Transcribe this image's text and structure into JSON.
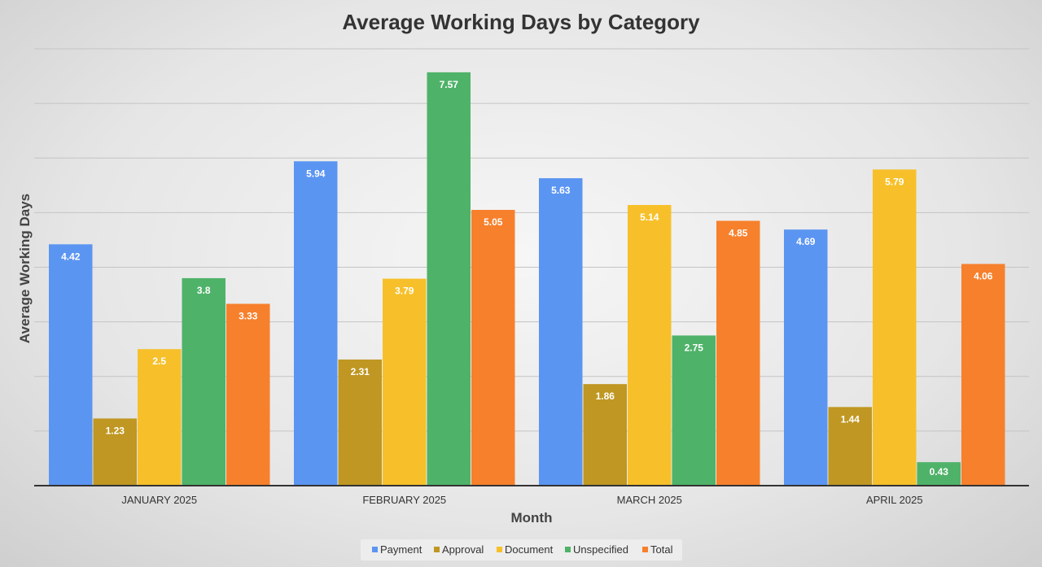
{
  "chart_data": {
    "type": "bar",
    "title": "Average Working Days by Category",
    "xlabel": "Month",
    "ylabel": "Average Working Days",
    "categories": [
      "JANUARY 2025",
      "FEBRUARY 2025",
      "MARCH 2025",
      "APRIL 2025"
    ],
    "series": [
      {
        "name": "Payment",
        "color": "#5b95f2",
        "values": [
          4.42,
          5.94,
          5.63,
          4.69
        ]
      },
      {
        "name": "Approval",
        "color": "#bf9722",
        "values": [
          1.23,
          2.31,
          1.86,
          1.44
        ]
      },
      {
        "name": "Document",
        "color": "#f7c02a",
        "values": [
          2.5,
          3.79,
          5.14,
          5.79
        ]
      },
      {
        "name": "Unspecified",
        "color": "#4fb269",
        "values": [
          3.8,
          7.57,
          2.75,
          0.43
        ]
      },
      {
        "name": "Total",
        "color": "#f7802c",
        "values": [
          3.33,
          5.05,
          4.85,
          4.06
        ]
      }
    ],
    "data_labels": [
      [
        "4.42",
        "1.23",
        "2.5",
        "3.8",
        "3.33"
      ],
      [
        "5.94",
        "2.31",
        "3.79",
        "7.57",
        "5.05"
      ],
      [
        "5.63",
        "1.86",
        "5.14",
        "2.75",
        "4.85"
      ],
      [
        "4.69",
        "1.44",
        "5.79",
        "0.43",
        "4.06"
      ]
    ],
    "ylim": [
      0,
      8
    ],
    "grid": true,
    "y_tick_labels_shown": false,
    "legend_position": "bottom"
  }
}
